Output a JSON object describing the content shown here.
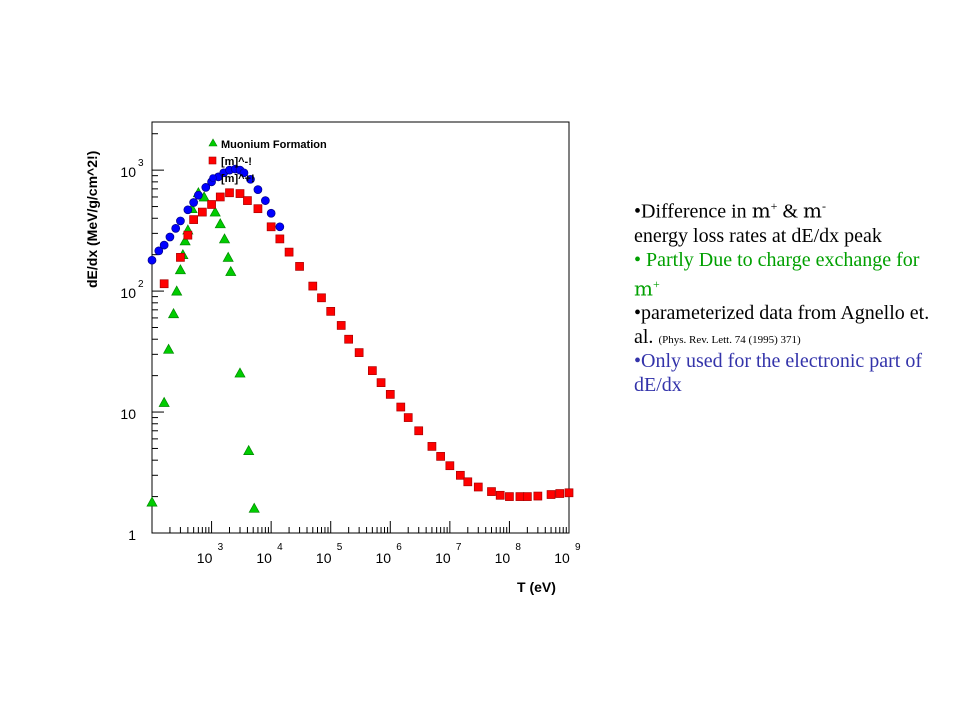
{
  "colors": {
    "muonium": "#00cc00",
    "mu_minus": "#ff0000",
    "mu_plus": "#0000ff",
    "note_green": "#00a000",
    "note_blue": "#3333aa"
  },
  "chart_data": {
    "type": "scatter",
    "xlabel": "T (eV)",
    "ylabel": "dE/dx (MeV/g/cm^2!)",
    "xscale": "log",
    "yscale": "log",
    "xlim": [
      100,
      1000000000
    ],
    "ylim": [
      1,
      2500
    ],
    "x_ticks": [
      {
        "base": "10",
        "exp": "3",
        "value": 1000
      },
      {
        "base": "10",
        "exp": "4",
        "value": 10000
      },
      {
        "base": "10",
        "exp": "5",
        "value": 100000
      },
      {
        "base": "10",
        "exp": "6",
        "value": 1000000
      },
      {
        "base": "10",
        "exp": "7",
        "value": 10000000
      },
      {
        "base": "10",
        "exp": "8",
        "value": 100000000
      },
      {
        "base": "10",
        "exp": "9",
        "value": 1000000000
      }
    ],
    "y_ticks": [
      {
        "base": "1",
        "exp": "",
        "value": 1
      },
      {
        "base": "10",
        "exp": "",
        "value": 10
      },
      {
        "base": "10",
        "exp": "2",
        "value": 100
      },
      {
        "base": "10",
        "exp": "3",
        "value": 1000
      }
    ],
    "legend_position": "top-left",
    "series": [
      {
        "name": "Muonium Formation",
        "marker": "triangle",
        "color": "#00cc00",
        "points": [
          [
            100,
            1.8
          ],
          [
            160,
            12
          ],
          [
            190,
            33
          ],
          [
            230,
            65
          ],
          [
            260,
            100
          ],
          [
            300,
            150
          ],
          [
            330,
            200
          ],
          [
            360,
            260
          ],
          [
            400,
            320
          ],
          [
            470,
            480
          ],
          [
            600,
            650
          ],
          [
            750,
            600
          ],
          [
            1150,
            450
          ],
          [
            1400,
            360
          ],
          [
            1650,
            270
          ],
          [
            1900,
            190
          ],
          [
            2100,
            145
          ],
          [
            3000,
            21
          ],
          [
            4200,
            4.8
          ],
          [
            5200,
            1.6
          ]
        ]
      },
      {
        "name": "[m]^-!",
        "marker": "square",
        "color": "#ff0000",
        "points": [
          [
            160,
            115
          ],
          [
            300,
            190
          ],
          [
            400,
            290
          ],
          [
            500,
            390
          ],
          [
            700,
            450
          ],
          [
            1000,
            520
          ],
          [
            1400,
            600
          ],
          [
            2000,
            650
          ],
          [
            3000,
            640
          ],
          [
            4000,
            560
          ],
          [
            6000,
            480
          ],
          [
            10000,
            340
          ],
          [
            14000,
            270
          ],
          [
            20000,
            210
          ],
          [
            30000,
            160
          ],
          [
            50000,
            110
          ],
          [
            70000,
            88
          ],
          [
            100000,
            68
          ],
          [
            150000,
            52
          ],
          [
            200000,
            40
          ],
          [
            300000,
            31
          ],
          [
            500000,
            22
          ],
          [
            700000,
            17.5
          ],
          [
            1000000,
            14
          ],
          [
            1500000,
            11
          ],
          [
            2000000,
            9
          ],
          [
            3000000,
            7
          ],
          [
            5000000,
            5.2
          ],
          [
            7000000,
            4.3
          ],
          [
            10000000,
            3.6
          ],
          [
            15000000,
            3.0
          ],
          [
            20000000,
            2.65
          ],
          [
            30000000,
            2.4
          ],
          [
            50000000,
            2.2
          ],
          [
            70000000,
            2.05
          ],
          [
            100000000,
            2.0
          ],
          [
            150000000,
            2.0
          ],
          [
            200000000,
            2.0
          ],
          [
            300000000,
            2.02
          ],
          [
            500000000,
            2.08
          ],
          [
            700000000,
            2.12
          ],
          [
            1000000000,
            2.15
          ]
        ]
      },
      {
        "name": "[m]^+!",
        "marker": "circle",
        "color": "#0000ff",
        "points": [
          [
            100,
            180
          ],
          [
            130,
            215
          ],
          [
            160,
            240
          ],
          [
            200,
            280
          ],
          [
            250,
            330
          ],
          [
            300,
            380
          ],
          [
            400,
            470
          ],
          [
            500,
            540
          ],
          [
            600,
            620
          ],
          [
            800,
            720
          ],
          [
            1000,
            800
          ],
          [
            1300,
            880
          ],
          [
            1600,
            950
          ],
          [
            2000,
            1000
          ],
          [
            2500,
            1020
          ],
          [
            3000,
            1000
          ],
          [
            3500,
            950
          ],
          [
            4500,
            840
          ],
          [
            6000,
            690
          ],
          [
            8000,
            560
          ],
          [
            10000,
            440
          ],
          [
            14000,
            340
          ]
        ]
      }
    ]
  },
  "notes": {
    "line1_a": "•Difference in ",
    "mu": "m",
    "sup_plus": "+",
    "line1_amp": " & ",
    "sup_minus": "-",
    "line1_b": "energy loss rates at dE/dx peak",
    "line2_a": "• Partly Due to charge exchange for ",
    "line3_a": "•parameterized data from Agnello et. al. ",
    "line3_ref": "(Phys. Rev. Lett. 74 (1995) 371)",
    "line4": "•Only used for the electronic part of dE/dx"
  }
}
